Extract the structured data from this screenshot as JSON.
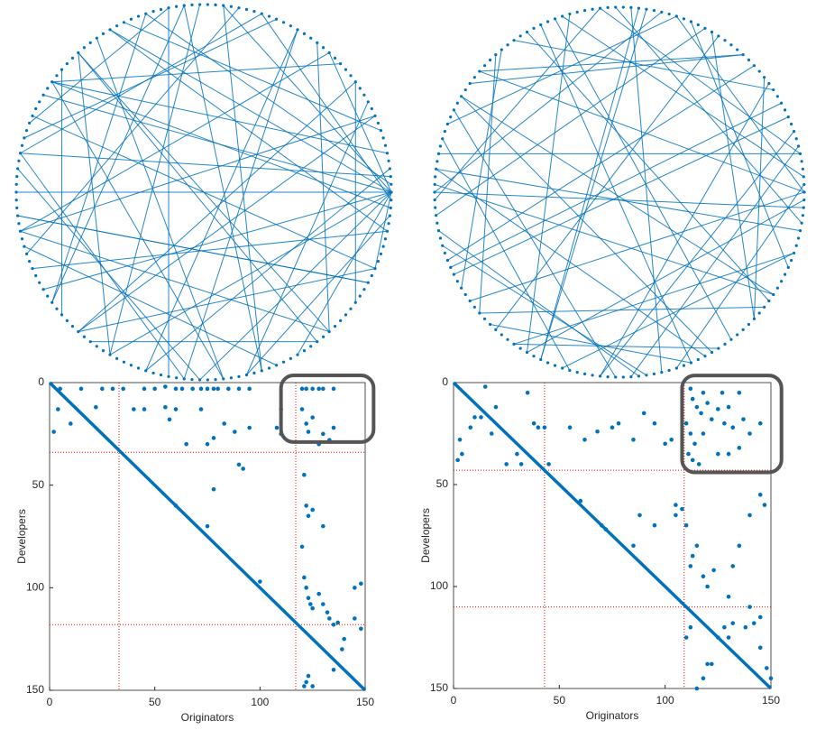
{
  "chart_data": [
    {
      "type": "network",
      "node_count": 150,
      "color": "#0072bd",
      "edges": [
        [
          0,
          20
        ],
        [
          0,
          35
        ],
        [
          0,
          50
        ],
        [
          0,
          62
        ],
        [
          0,
          75
        ],
        [
          0,
          88
        ],
        [
          0,
          100
        ],
        [
          0,
          112
        ],
        [
          0,
          125
        ],
        [
          0,
          140
        ],
        [
          1,
          45
        ],
        [
          2,
          70
        ],
        [
          148,
          60
        ],
        [
          149,
          30
        ],
        [
          10,
          80
        ],
        [
          15,
          95
        ],
        [
          25,
          110
        ],
        [
          30,
          70
        ],
        [
          40,
          120
        ],
        [
          45,
          90
        ],
        [
          55,
          130
        ],
        [
          60,
          5
        ],
        [
          65,
          140
        ],
        [
          70,
          110
        ],
        [
          80,
          20
        ],
        [
          85,
          145
        ],
        [
          90,
          40
        ],
        [
          95,
          10
        ],
        [
          100,
          55
        ],
        [
          105,
          25
        ],
        [
          115,
          60
        ],
        [
          120,
          35
        ],
        [
          130,
          80
        ],
        [
          135,
          15
        ],
        [
          140,
          95
        ],
        [
          145,
          50
        ],
        [
          18,
          60
        ],
        [
          22,
          130
        ],
        [
          38,
          100
        ],
        [
          48,
          8
        ],
        [
          52,
          115
        ],
        [
          58,
          92
        ],
        [
          68,
          28
        ],
        [
          78,
          138
        ],
        [
          82,
          122
        ],
        [
          108,
          42
        ],
        [
          112,
          72
        ],
        [
          118,
          12
        ],
        [
          128,
          55
        ],
        [
          138,
          78
        ],
        [
          3,
          105
        ],
        [
          147,
          118
        ],
        [
          33,
          83
        ],
        [
          42,
          66
        ],
        [
          97,
          128
        ]
      ]
    },
    {
      "type": "network",
      "node_count": 150,
      "color": "#0072bd",
      "edges": [
        [
          0,
          30
        ],
        [
          0,
          58
        ],
        [
          0,
          90
        ],
        [
          1,
          120
        ],
        [
          2,
          45
        ],
        [
          148,
          75
        ],
        [
          149,
          100
        ],
        [
          5,
          70
        ],
        [
          8,
          110
        ],
        [
          12,
          85
        ],
        [
          16,
          132
        ],
        [
          20,
          60
        ],
        [
          24,
          95
        ],
        [
          28,
          140
        ],
        [
          32,
          75
        ],
        [
          36,
          118
        ],
        [
          40,
          5
        ],
        [
          44,
          100
        ],
        [
          50,
          135
        ],
        [
          54,
          88
        ],
        [
          58,
          20
        ],
        [
          62,
          125
        ],
        [
          66,
          30
        ],
        [
          72,
          145
        ],
        [
          76,
          40
        ],
        [
          80,
          115
        ],
        [
          86,
          10
        ],
        [
          92,
          55
        ],
        [
          98,
          142
        ],
        [
          102,
          35
        ],
        [
          106,
          68
        ],
        [
          110,
          15
        ],
        [
          116,
          82
        ],
        [
          122,
          48
        ],
        [
          126,
          98
        ],
        [
          132,
          25
        ],
        [
          136,
          62
        ],
        [
          142,
          105
        ],
        [
          146,
          38
        ],
        [
          14,
          52
        ],
        [
          26,
          78
        ],
        [
          34,
          102
        ],
        [
          46,
          128
        ],
        [
          64,
          112
        ],
        [
          74,
          136
        ],
        [
          84,
          18
        ],
        [
          94,
          122
        ],
        [
          114,
          6
        ],
        [
          124,
          72
        ],
        [
          134,
          92
        ]
      ]
    },
    {
      "type": "scatter",
      "xlabel": "Originators",
      "ylabel": "Developers",
      "color": "#0072bd",
      "xlim": [
        0,
        150
      ],
      "ylim": [
        0,
        150
      ],
      "y_reversed": true,
      "xticks": [
        0,
        50,
        100,
        150
      ],
      "yticks": [
        0,
        50,
        100,
        150
      ],
      "diagonal": {
        "x": [
          0,
          150
        ],
        "y": [
          0,
          150
        ]
      },
      "partitions": {
        "x": [
          33,
          117
        ],
        "y": [
          34,
          118
        ],
        "color": "#ff0000"
      },
      "highlight": {
        "x": [
          110,
          154
        ],
        "y": [
          -3.5,
          29
        ],
        "color": "#555555"
      },
      "x": [
        5,
        15,
        25,
        30,
        35,
        45,
        50,
        55,
        60,
        63,
        68,
        72,
        75,
        78,
        80,
        85,
        90,
        95,
        120,
        122,
        125,
        128,
        130,
        135,
        4,
        2,
        10,
        22,
        40,
        45,
        55,
        57,
        60,
        72,
        83,
        88,
        95,
        110,
        108,
        90,
        92,
        75,
        78,
        65,
        110,
        120,
        122,
        125,
        123,
        128,
        130,
        133,
        135,
        121,
        122,
        125,
        123,
        130,
        120,
        121,
        122,
        123,
        124,
        125,
        128,
        130,
        132,
        133,
        135,
        137,
        140,
        139,
        135,
        123,
        122,
        121,
        125,
        145,
        148,
        145,
        148,
        60,
        78,
        100,
        75
      ],
      "y": [
        3,
        3,
        3,
        3,
        3,
        3,
        3,
        2,
        3,
        3,
        3,
        3,
        3,
        3,
        3,
        3,
        3,
        3,
        3,
        3,
        3,
        3,
        3,
        3,
        13,
        24,
        20,
        12,
        13,
        13,
        12,
        18,
        13,
        13,
        20,
        24,
        22,
        13,
        22,
        40,
        42,
        30,
        27,
        30,
        25,
        13,
        20,
        17,
        24,
        30,
        25,
        28,
        22,
        45,
        60,
        62,
        65,
        70,
        80,
        95,
        100,
        105,
        108,
        110,
        103,
        108,
        112,
        115,
        118,
        117,
        125,
        130,
        140,
        143,
        146,
        148,
        148,
        100,
        98,
        115,
        120,
        60,
        52,
        97,
        70
      ]
    },
    {
      "type": "scatter",
      "xlabel": "Originators",
      "ylabel": "Developers",
      "color": "#0072bd",
      "xlim": [
        0,
        150
      ],
      "ylim": [
        0,
        150
      ],
      "y_reversed": true,
      "xticks": [
        0,
        50,
        100,
        150
      ],
      "yticks": [
        0,
        50,
        100,
        150
      ],
      "diagonal": {
        "x": [
          0,
          150
        ],
        "y": [
          0,
          150
        ]
      },
      "partitions": {
        "x": [
          43,
          109
        ],
        "y": [
          43,
          110
        ],
        "color": "#ff0000"
      },
      "highlight": {
        "x": [
          108,
          155
        ],
        "y": [
          -3.5,
          44
        ],
        "color": "#555555"
      },
      "x": [
        4,
        2,
        3,
        8,
        10,
        13,
        15,
        18,
        20,
        25,
        30,
        32,
        35,
        38,
        40,
        43,
        45,
        55,
        62,
        68,
        75,
        78,
        85,
        90,
        95,
        100,
        103,
        112,
        113,
        115,
        117,
        118,
        120,
        122,
        125,
        127,
        128,
        130,
        132,
        135,
        137,
        140,
        145,
        110,
        112,
        114,
        111,
        113,
        116,
        125,
        130,
        135,
        118,
        105,
        108,
        110,
        115,
        113,
        112,
        118,
        120,
        123,
        132,
        135,
        140,
        145,
        147,
        130,
        140,
        145,
        142,
        132,
        128,
        125,
        130,
        138,
        145,
        148,
        150,
        115,
        118,
        120,
        122,
        110,
        112,
        85,
        95,
        88,
        70,
        72,
        60,
        105
      ],
      "y": [
        35,
        38,
        28,
        22,
        17,
        17,
        2,
        25,
        12,
        40,
        35,
        40,
        5,
        20,
        22,
        22,
        40,
        22,
        28,
        24,
        22,
        20,
        28,
        15,
        20,
        30,
        28,
        3,
        8,
        12,
        15,
        5,
        10,
        18,
        13,
        5,
        20,
        12,
        22,
        5,
        18,
        25,
        20,
        20,
        25,
        30,
        35,
        38,
        40,
        35,
        35,
        32,
        25,
        60,
        62,
        70,
        80,
        85,
        90,
        95,
        100,
        92,
        90,
        80,
        65,
        55,
        60,
        105,
        110,
        115,
        118,
        118,
        120,
        125,
        125,
        120,
        130,
        140,
        145,
        150,
        145,
        138,
        138,
        125,
        120,
        80,
        70,
        65,
        70,
        72,
        58,
        65
      ]
    }
  ]
}
